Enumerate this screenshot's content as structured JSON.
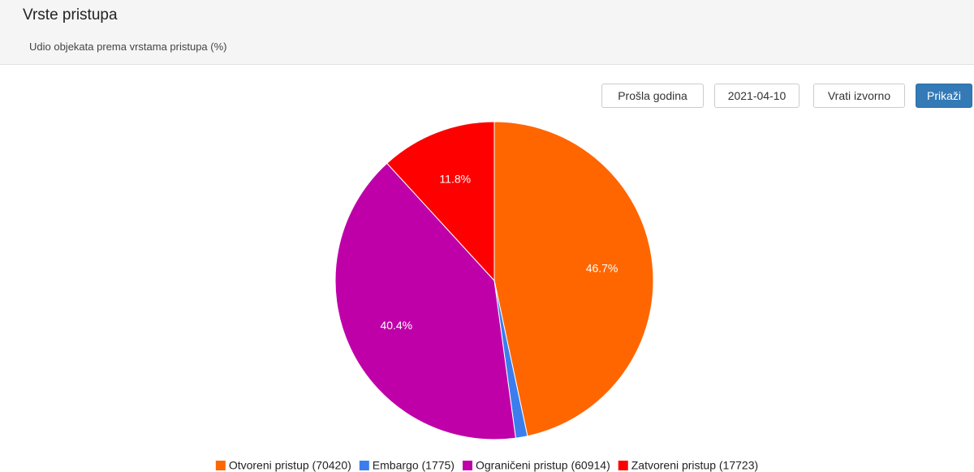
{
  "header": {
    "title": "Vrste pristupa",
    "subtitle": "Udio objekata prema vrstama pristupa (%)"
  },
  "controls": {
    "buttons": [
      "Prošla godina",
      "2021-04-10",
      "Vrati izvorno",
      "Prikaži"
    ]
  },
  "chart_data": {
    "type": "pie",
    "categories": [
      "Otvoreni pristup (70420)",
      "Embargo (1775)",
      "Ograničeni pristup (60914)",
      "Zatvoreni pristup (17723)"
    ],
    "values": [
      46.7,
      1.2,
      40.4,
      11.8
    ],
    "value_labels": [
      "46.7%",
      null,
      "40.4%",
      "11.8%"
    ],
    "colors": [
      "#ff6600",
      "#3b7ded",
      "#bf00a8",
      "#ff0000"
    ],
    "legend": "bottom"
  }
}
